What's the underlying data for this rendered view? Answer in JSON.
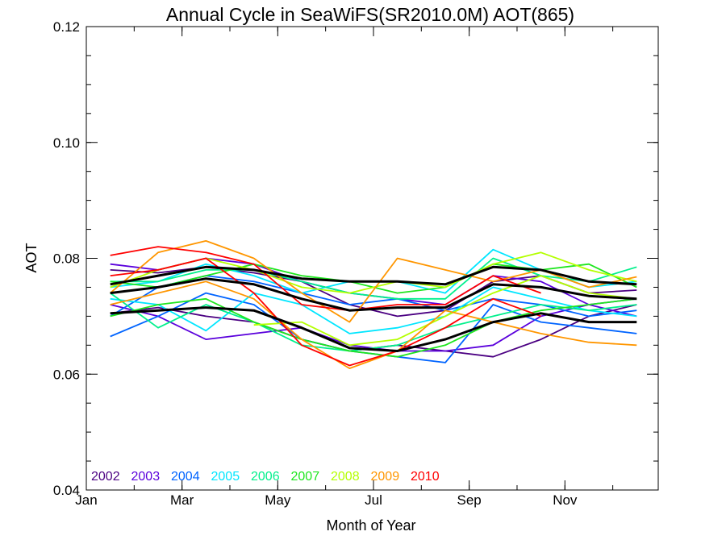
{
  "chart_data": {
    "type": "line",
    "title": "Annual Cycle in SeaWiFS(SR2010.0M) AOT(865)",
    "xlabel": "Month of Year",
    "ylabel": "AOT",
    "xlim": [
      1,
      12.95
    ],
    "ylim": [
      0.04,
      0.12
    ],
    "x_ticks": [
      {
        "value": 1,
        "label": "Jan"
      },
      {
        "value": 3,
        "label": "Mar"
      },
      {
        "value": 5,
        "label": "May"
      },
      {
        "value": 7,
        "label": "Jul"
      },
      {
        "value": 9,
        "label": "Sep"
      },
      {
        "value": 11,
        "label": "Nov"
      }
    ],
    "y_ticks": [
      {
        "value": 0.04,
        "label": "0.04"
      },
      {
        "value": 0.06,
        "label": "0.06"
      },
      {
        "value": 0.08,
        "label": "0.08"
      },
      {
        "value": 0.1,
        "label": "0.10"
      },
      {
        "value": 0.12,
        "label": "0.12"
      }
    ],
    "x": [
      1.5,
      2.5,
      3.5,
      4.5,
      5.5,
      6.5,
      7.5,
      8.5,
      9.5,
      10.5,
      11.5,
      12.5
    ],
    "grid": false,
    "legend_position": "bottom-left",
    "legend": [
      {
        "label": "2002",
        "color": "#4b0082"
      },
      {
        "label": "2003",
        "color": "#5a00dc"
      },
      {
        "label": "2004",
        "color": "#0064ff"
      },
      {
        "label": "2005",
        "color": "#00e6ff"
      },
      {
        "label": "2006",
        "color": "#00f08c"
      },
      {
        "label": "2007",
        "color": "#1ee61e"
      },
      {
        "label": "2008",
        "color": "#b4ff00"
      },
      {
        "label": "2009",
        "color": "#ff9600"
      },
      {
        "label": "2010",
        "color": "#ff0000"
      }
    ],
    "series": [
      {
        "color": "#4b0082",
        "values": [
          0.078,
          0.0775,
          0.0785,
          0.0775,
          0.076,
          0.072,
          0.07,
          0.071,
          0.076,
          0.077,
          0.074,
          0.0745
        ]
      },
      {
        "color": "#4b0082",
        "values": [
          0.0705,
          0.0715,
          0.07,
          0.069,
          0.066,
          0.064,
          0.065,
          0.064,
          0.063,
          0.066,
          0.07,
          0.072
        ]
      },
      {
        "color": "#5a00dc",
        "values": [
          0.079,
          0.078,
          0.08,
          0.079,
          0.076,
          0.074,
          0.073,
          0.072,
          0.077,
          0.076,
          0.072,
          0.073
        ]
      },
      {
        "color": "#5a00dc",
        "values": [
          0.072,
          0.07,
          0.066,
          0.067,
          0.068,
          0.065,
          0.064,
          0.064,
          0.065,
          0.07,
          0.072,
          0.07
        ]
      },
      {
        "color": "#0064ff",
        "values": [
          0.07,
          0.075,
          0.077,
          0.076,
          0.074,
          0.072,
          0.073,
          0.071,
          0.073,
          0.072,
          0.07,
          0.071
        ]
      },
      {
        "color": "#0064ff",
        "values": [
          0.0665,
          0.07,
          0.074,
          0.072,
          0.066,
          0.064,
          0.063,
          0.062,
          0.072,
          0.069,
          0.068,
          0.067
        ]
      },
      {
        "color": "#00e6ff",
        "values": [
          0.073,
          0.072,
          0.0675,
          0.074,
          0.072,
          0.067,
          0.068,
          0.07,
          0.075,
          0.073,
          0.071,
          0.07
        ]
      },
      {
        "color": "#00e6ff",
        "values": [
          0.075,
          0.076,
          0.079,
          0.077,
          0.074,
          0.076,
          0.076,
          0.074,
          0.0815,
          0.078,
          0.075,
          0.076
        ]
      },
      {
        "color": "#00f08c",
        "values": [
          0.074,
          0.068,
          0.072,
          0.069,
          0.065,
          0.064,
          0.065,
          0.068,
          0.07,
          0.072,
          0.071,
          0.072
        ]
      },
      {
        "color": "#00f08c",
        "values": [
          0.076,
          0.076,
          0.078,
          0.078,
          0.076,
          0.074,
          0.073,
          0.073,
          0.08,
          0.077,
          0.076,
          0.0785
        ]
      },
      {
        "color": "#1ee61e",
        "values": [
          0.07,
          0.072,
          0.073,
          0.069,
          0.066,
          0.064,
          0.063,
          0.065,
          0.069,
          0.071,
          0.072,
          0.073
        ]
      },
      {
        "color": "#1ee61e",
        "values": [
          0.076,
          0.075,
          0.077,
          0.079,
          0.077,
          0.076,
          0.074,
          0.075,
          0.079,
          0.078,
          0.079,
          0.075
        ]
      },
      {
        "color": "#b4ff00",
        "values": [
          null,
          null,
          null,
          0.0685,
          0.069,
          0.065,
          0.066,
          0.07,
          0.074,
          0.077,
          0.074,
          0.073
        ]
      },
      {
        "color": "#b4ff00",
        "values": [
          0.075,
          0.078,
          0.08,
          0.078,
          0.075,
          0.074,
          0.076,
          0.075,
          0.079,
          0.081,
          0.078,
          0.076
        ]
      },
      {
        "color": "#ff9600",
        "values": [
          0.074,
          0.081,
          0.083,
          0.08,
          0.074,
          0.069,
          0.08,
          0.078,
          0.076,
          0.078,
          0.075,
          0.0768
        ]
      },
      {
        "color": "#ff9600",
        "values": [
          0.072,
          0.074,
          0.076,
          0.073,
          0.066,
          0.061,
          0.064,
          0.071,
          0.069,
          0.067,
          0.0655,
          0.065
        ]
      },
      {
        "color": "#ff0000",
        "values": [
          0.0805,
          0.082,
          0.081,
          0.079,
          0.072,
          0.071,
          0.072,
          0.072,
          0.077,
          0.074,
          null,
          null
        ]
      },
      {
        "color": "#ff0000",
        "values": [
          0.077,
          0.078,
          0.08,
          0.074,
          0.065,
          0.0615,
          0.064,
          0.068,
          0.073,
          0.07,
          null,
          null
        ]
      },
      {
        "color": "#000000",
        "thick": true,
        "values": [
          0.0755,
          0.077,
          0.0785,
          0.078,
          0.0765,
          0.076,
          0.076,
          0.0755,
          0.0785,
          0.078,
          0.076,
          0.0755
        ]
      },
      {
        "color": "#000000",
        "thick": true,
        "values": [
          0.074,
          0.075,
          0.0765,
          0.0755,
          0.073,
          0.071,
          0.0715,
          0.0715,
          0.0755,
          0.075,
          0.0735,
          0.073
        ]
      },
      {
        "color": "#000000",
        "thick": true,
        "values": [
          0.0705,
          0.071,
          0.0715,
          0.071,
          0.068,
          0.0645,
          0.064,
          0.066,
          0.069,
          0.0705,
          0.069,
          0.069
        ]
      }
    ]
  }
}
